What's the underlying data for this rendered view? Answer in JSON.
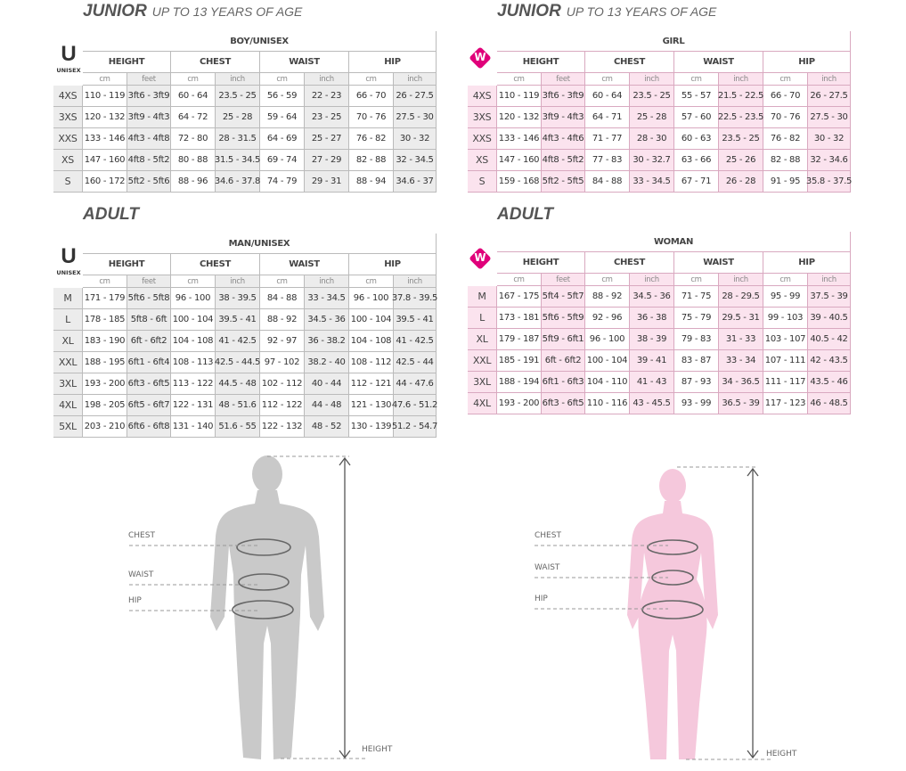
{
  "panels": [
    {
      "title": "JUNIOR",
      "subtitle": "UP TO 13 YEARS OF AGE",
      "icon": "U",
      "icon_label": "UNISEX",
      "group": "BOY/UNISEX",
      "columns": [
        "HEIGHT",
        "CHEST",
        "WAIST",
        "HIP"
      ],
      "units": [
        "cm",
        "feet",
        "cm",
        "inch",
        "cm",
        "inch",
        "cm",
        "inch"
      ],
      "rows": [
        [
          "4XS",
          "110 - 119",
          "3ft6 - 3ft9",
          "60 - 64",
          "23.5 - 25",
          "56 - 59",
          "22 - 23",
          "66 - 70",
          "26 - 27.5"
        ],
        [
          "3XS",
          "120 - 132",
          "3ft9 - 4ft3",
          "64 - 72",
          "25 - 28",
          "59 - 64",
          "23 - 25",
          "70 - 76",
          "27.5 - 30"
        ],
        [
          "XXS",
          "133 - 146",
          "4ft3 - 4ft8",
          "72 - 80",
          "28 - 31.5",
          "64 - 69",
          "25 - 27",
          "76 - 82",
          "30 - 32"
        ],
        [
          "XS",
          "147 - 160",
          "4ft8 - 5ft2",
          "80 - 88",
          "31.5 - 34.5",
          "69 - 74",
          "27 - 29",
          "82 - 88",
          "32 - 34.5"
        ],
        [
          "S",
          "160 - 172",
          "5ft2 - 5ft6",
          "88 - 96",
          "34.6 - 37.8",
          "74 - 79",
          "29 - 31",
          "88 - 94",
          "34.6 - 37"
        ]
      ]
    },
    {
      "title": "JUNIOR",
      "subtitle": "UP TO 13 YEARS OF AGE",
      "icon": "W",
      "group": "GIRL",
      "columns": [
        "HEIGHT",
        "CHEST",
        "WAIST",
        "HIP"
      ],
      "units": [
        "cm",
        "feet",
        "cm",
        "inch",
        "cm",
        "inch",
        "cm",
        "inch"
      ],
      "rows": [
        [
          "4XS",
          "110 - 119",
          "3ft6 - 3ft9",
          "60 - 64",
          "23.5 - 25",
          "55 - 57",
          "21.5 - 22.5",
          "66 - 70",
          "26 - 27.5"
        ],
        [
          "3XS",
          "120 - 132",
          "3ft9 - 4ft3",
          "64 - 71",
          "25 - 28",
          "57 - 60",
          "22.5 - 23.5",
          "70 - 76",
          "27.5 - 30"
        ],
        [
          "XXS",
          "133 - 146",
          "4ft3 - 4ft6",
          "71 - 77",
          "28 - 30",
          "60 - 63",
          "23.5 - 25",
          "76 - 82",
          "30 - 32"
        ],
        [
          "XS",
          "147 - 160",
          "4ft8 - 5ft2",
          "77 - 83",
          "30 - 32.7",
          "63 - 66",
          "25 - 26",
          "82 - 88",
          "32 - 34.6"
        ],
        [
          "S",
          "159 - 168",
          "5ft2 - 5ft5",
          "84 - 88",
          "33 - 34.5",
          "67 - 71",
          "26 - 28",
          "91 - 95",
          "35.8 - 37.5"
        ]
      ]
    },
    {
      "title": "ADULT",
      "icon": "U",
      "icon_label": "UNISEX",
      "group": "MAN/UNISEX",
      "columns": [
        "HEIGHT",
        "CHEST",
        "WAIST",
        "HIP"
      ],
      "units": [
        "cm",
        "feet",
        "cm",
        "inch",
        "cm",
        "inch",
        "cm",
        "inch"
      ],
      "rows": [
        [
          "M",
          "171 - 179",
          "5ft6 - 5ft8",
          "96 - 100",
          "38 - 39.5",
          "84 - 88",
          "33 - 34.5",
          "96 - 100",
          "37.8 - 39.5"
        ],
        [
          "L",
          "178 - 185",
          "5ft8 - 6ft",
          "100 - 104",
          "39.5 - 41",
          "88 - 92",
          "34.5 - 36",
          "100 - 104",
          "39.5 - 41"
        ],
        [
          "XL",
          "183 - 190",
          "6ft - 6ft2",
          "104 - 108",
          "41 - 42.5",
          "92 - 97",
          "36 - 38.2",
          "104 - 108",
          "41 - 42.5"
        ],
        [
          "XXL",
          "188 - 195",
          "6ft1 - 6ft4",
          "108 - 113",
          "42.5 - 44.5",
          "97 - 102",
          "38.2 - 40",
          "108 - 112",
          "42.5 - 44"
        ],
        [
          "3XL",
          "193 - 200",
          "6ft3 - 6ft5",
          "113 - 122",
          "44.5 - 48",
          "102 - 112",
          "40 - 44",
          "112 - 121",
          "44 - 47.6"
        ],
        [
          "4XL",
          "198 - 205",
          "6ft5 - 6ft7",
          "122 - 131",
          "48 - 51.6",
          "112 - 122",
          "44 - 48",
          "121 - 130",
          "47.6 - 51.2"
        ],
        [
          "5XL",
          "203 - 210",
          "6ft6 - 6ft8",
          "131 - 140",
          "51.6 - 55",
          "122 - 132",
          "48 - 52",
          "130 - 139",
          "51.2 - 54.7"
        ]
      ]
    },
    {
      "title": "ADULT",
      "icon": "W",
      "group": "WOMAN",
      "columns": [
        "HEIGHT",
        "CHEST",
        "WAIST",
        "HIP"
      ],
      "units": [
        "cm",
        "feet",
        "cm",
        "inch",
        "cm",
        "inch",
        "cm",
        "inch"
      ],
      "rows": [
        [
          "M",
          "167 - 175",
          "5ft4 - 5ft7",
          "88 - 92",
          "34.5 - 36",
          "71 - 75",
          "28 - 29.5",
          "95 - 99",
          "37.5 - 39"
        ],
        [
          "L",
          "173 - 181",
          "5ft6 - 5ft9",
          "92 - 96",
          "36 - 38",
          "75 - 79",
          "29.5 - 31",
          "99 - 103",
          "39 - 40.5"
        ],
        [
          "XL",
          "179 - 187",
          "5ft9 - 6ft1",
          "96 - 100",
          "38 - 39",
          "79 - 83",
          "31 - 33",
          "103 - 107",
          "40.5 - 42"
        ],
        [
          "XXL",
          "185 - 191",
          "6ft - 6ft2",
          "100 - 104",
          "39 - 41",
          "83 - 87",
          "33 - 34",
          "107 - 111",
          "42 - 43.5"
        ],
        [
          "3XL",
          "188 - 194",
          "6ft1 - 6ft3",
          "104 - 110",
          "41 - 43",
          "87 - 93",
          "34 - 36.5",
          "111 - 117",
          "43.5 - 46"
        ],
        [
          "4XL",
          "193 - 200",
          "6ft3 - 6ft5",
          "110 - 116",
          "43 - 45.5",
          "93 - 99",
          "36.5 - 39",
          "117 - 123",
          "46 - 48.5"
        ]
      ]
    }
  ],
  "figures": [
    {
      "labels": [
        "CHEST",
        "WAIST",
        "HIP"
      ],
      "height_label": "HEIGHT"
    },
    {
      "labels": [
        "CHEST",
        "WAIST",
        "HIP"
      ],
      "height_label": "HEIGHT"
    }
  ]
}
